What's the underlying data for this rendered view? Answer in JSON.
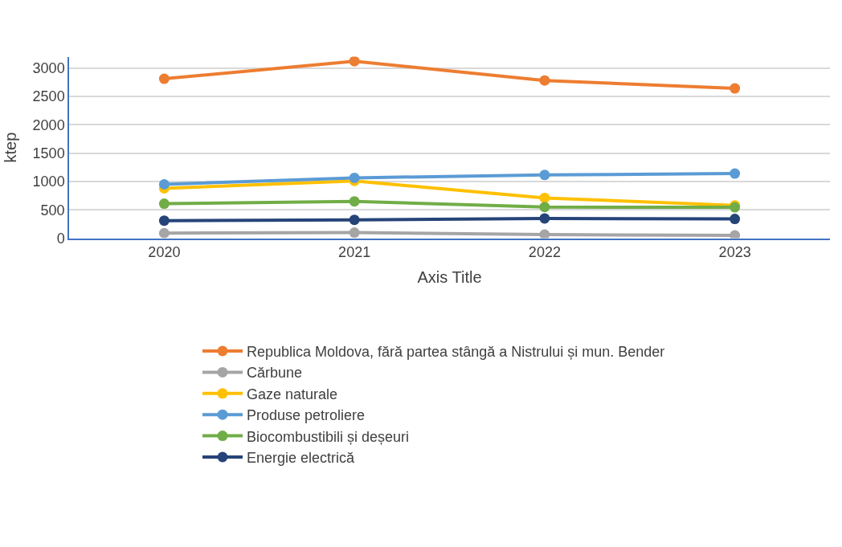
{
  "chart_data": {
    "type": "line",
    "xlabel": "Axis Title",
    "ylabel": "ktep",
    "categories": [
      "2020",
      "2021",
      "2022",
      "2023"
    ],
    "series": [
      {
        "name": "Republica Moldova, fără partea stângă a Nistrului și mun. Bender",
        "color": "#ed7d31",
        "values": [
          2810,
          3120,
          2780,
          2640
        ]
      },
      {
        "name": "Cărbune",
        "color": "#a5a5a5",
        "values": [
          90,
          100,
          65,
          50
        ]
      },
      {
        "name": "Gaze naturale",
        "color": "#ffc000",
        "values": [
          880,
          1010,
          710,
          580
        ]
      },
      {
        "name": "Produse petroliere",
        "color": "#5b9bd5",
        "values": [
          950,
          1065,
          1115,
          1140
        ]
      },
      {
        "name": "Biocombustibili și deșeuri",
        "color": "#70ad47",
        "values": [
          610,
          650,
          550,
          545
        ]
      },
      {
        "name": "Energie electrică",
        "color": "#264478",
        "values": [
          310,
          325,
          350,
          340
        ]
      }
    ],
    "ylim": [
      0,
      3200
    ],
    "yticks": [
      0,
      500,
      1000,
      1500,
      2000,
      2500,
      3000
    ],
    "grid": "y",
    "legend": "bottom",
    "marker": "circle",
    "line_style": "solid"
  }
}
